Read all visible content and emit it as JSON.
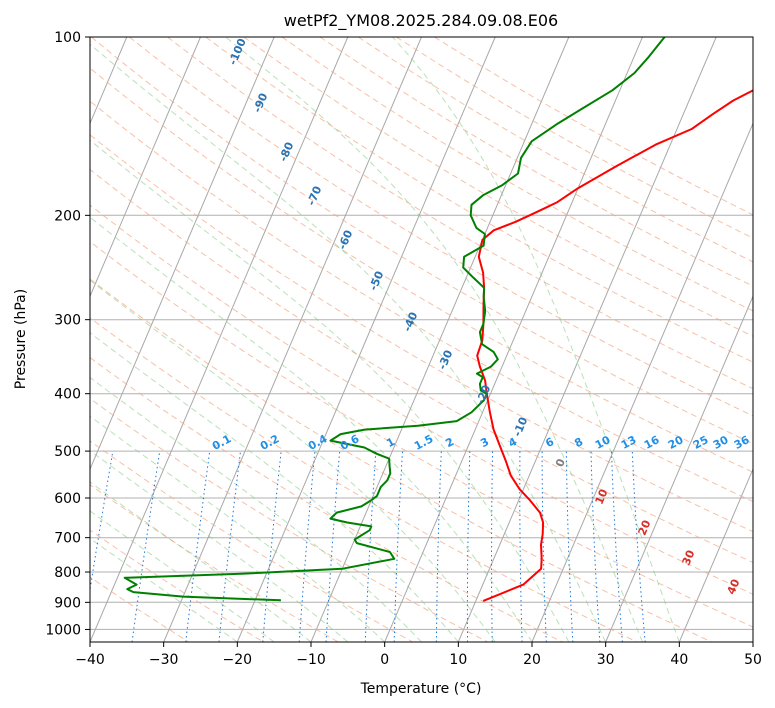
{
  "chart_data": {
    "type": "line",
    "title": "wetPf2_YM08.2025.284.09.08.E06",
    "xlabel": "Temperature (°C)",
    "ylabel": "Pressure (hPa)",
    "xlim": [
      -40,
      50
    ],
    "ylim": [
      1050,
      100
    ],
    "y_scale": "log",
    "grid": true,
    "x_ticks": [
      -40,
      -30,
      -20,
      -10,
      0,
      10,
      20,
      30,
      40,
      50
    ],
    "y_ticks": [
      100,
      200,
      300,
      400,
      500,
      600,
      700,
      800,
      900,
      1000
    ],
    "isotherm_labels": [
      "-100",
      "-90",
      "-80",
      "-70",
      "-60",
      "-50",
      "-40",
      "-30",
      "-20",
      "-10",
      "0",
      "10",
      "20",
      "30",
      "40"
    ],
    "mixing_ratio_labels": [
      "0.1",
      "0.2",
      "0.4",
      "0.6",
      "1",
      "1.5",
      "2",
      "3",
      "4",
      "6",
      "8",
      "10",
      "13",
      "16",
      "20",
      "25",
      "30",
      "36"
    ],
    "series": [
      {
        "color": "#ff0000",
        "points": [
          [
            11,
            895
          ],
          [
            15.5,
            840
          ],
          [
            17,
            790
          ],
          [
            16.5,
            760
          ],
          [
            15.6,
            720
          ],
          [
            15.2,
            690
          ],
          [
            14.6,
            660
          ],
          [
            13.6,
            635
          ],
          [
            11.5,
            605
          ],
          [
            9.5,
            580
          ],
          [
            7.5,
            550
          ],
          [
            6,
            520
          ],
          [
            4.3,
            490
          ],
          [
            2.5,
            460
          ],
          [
            1,
            430
          ],
          [
            -0.5,
            400
          ],
          [
            -1.5,
            380
          ],
          [
            -3,
            360
          ],
          [
            -4,
            345
          ],
          [
            -4.2,
            325
          ],
          [
            -5,
            305
          ],
          [
            -6,
            285
          ],
          [
            -7,
            265
          ],
          [
            -8,
            250
          ],
          [
            -9.5,
            235
          ],
          [
            -10,
            220
          ],
          [
            -9,
            212
          ],
          [
            -6.5,
            205
          ],
          [
            -5,
            200
          ],
          [
            -3.5,
            195
          ],
          [
            -2,
            190
          ],
          [
            0,
            180
          ],
          [
            4,
            165
          ],
          [
            8,
            152
          ],
          [
            12,
            143
          ],
          [
            14,
            135
          ],
          [
            16,
            128
          ],
          [
            19,
            121
          ],
          [
            20,
            118
          ],
          [
            22,
            112
          ],
          [
            24,
            105
          ],
          [
            26,
            100
          ]
        ]
      },
      {
        "color": "#008000",
        "points": [
          [
            -16.5,
            893
          ],
          [
            -30,
            880
          ],
          [
            -37,
            865
          ],
          [
            -38,
            855
          ],
          [
            -37,
            840
          ],
          [
            -39,
            818
          ],
          [
            -23,
            805
          ],
          [
            -10,
            790
          ],
          [
            -3.5,
            760
          ],
          [
            -4.5,
            740
          ],
          [
            -9.5,
            715
          ],
          [
            -10,
            705
          ],
          [
            -8.5,
            680
          ],
          [
            -8.5,
            670
          ],
          [
            -12,
            660
          ],
          [
            -14.5,
            650
          ],
          [
            -14,
            635
          ],
          [
            -11,
            620
          ],
          [
            -10,
            605
          ],
          [
            -9.5,
            595
          ],
          [
            -9.5,
            575
          ],
          [
            -9,
            560
          ],
          [
            -9,
            545
          ],
          [
            -9.5,
            530
          ],
          [
            -10,
            515
          ],
          [
            -12,
            505
          ],
          [
            -14,
            493
          ],
          [
            -19,
            480
          ],
          [
            -18,
            468
          ],
          [
            -15,
            460
          ],
          [
            -8,
            453
          ],
          [
            -3,
            445
          ],
          [
            -1.5,
            430
          ],
          [
            -0.5,
            410
          ],
          [
            -0.5,
            400
          ],
          [
            -1.5,
            395
          ],
          [
            -2,
            385
          ],
          [
            -2,
            375
          ],
          [
            -3,
            370
          ],
          [
            -1.5,
            360
          ],
          [
            -1,
            350
          ],
          [
            -2,
            340
          ],
          [
            -4,
            330
          ],
          [
            -5,
            315
          ],
          [
            -5,
            305
          ],
          [
            -5.5,
            290
          ],
          [
            -6.5,
            275
          ],
          [
            -7,
            265
          ],
          [
            -9,
            255
          ],
          [
            -11,
            245
          ],
          [
            -11.5,
            235
          ],
          [
            -9.5,
            225
          ],
          [
            -10,
            215
          ],
          [
            -11.5,
            210
          ],
          [
            -13,
            200
          ],
          [
            -13.5,
            192
          ],
          [
            -12.5,
            185
          ],
          [
            -10.5,
            178
          ],
          [
            -9,
            170
          ],
          [
            -9.5,
            160
          ],
          [
            -9,
            150
          ],
          [
            -6.5,
            140
          ],
          [
            -4,
            132
          ],
          [
            -1,
            123
          ],
          [
            1,
            115
          ],
          [
            2,
            108
          ],
          [
            3,
            100
          ]
        ]
      }
    ]
  }
}
